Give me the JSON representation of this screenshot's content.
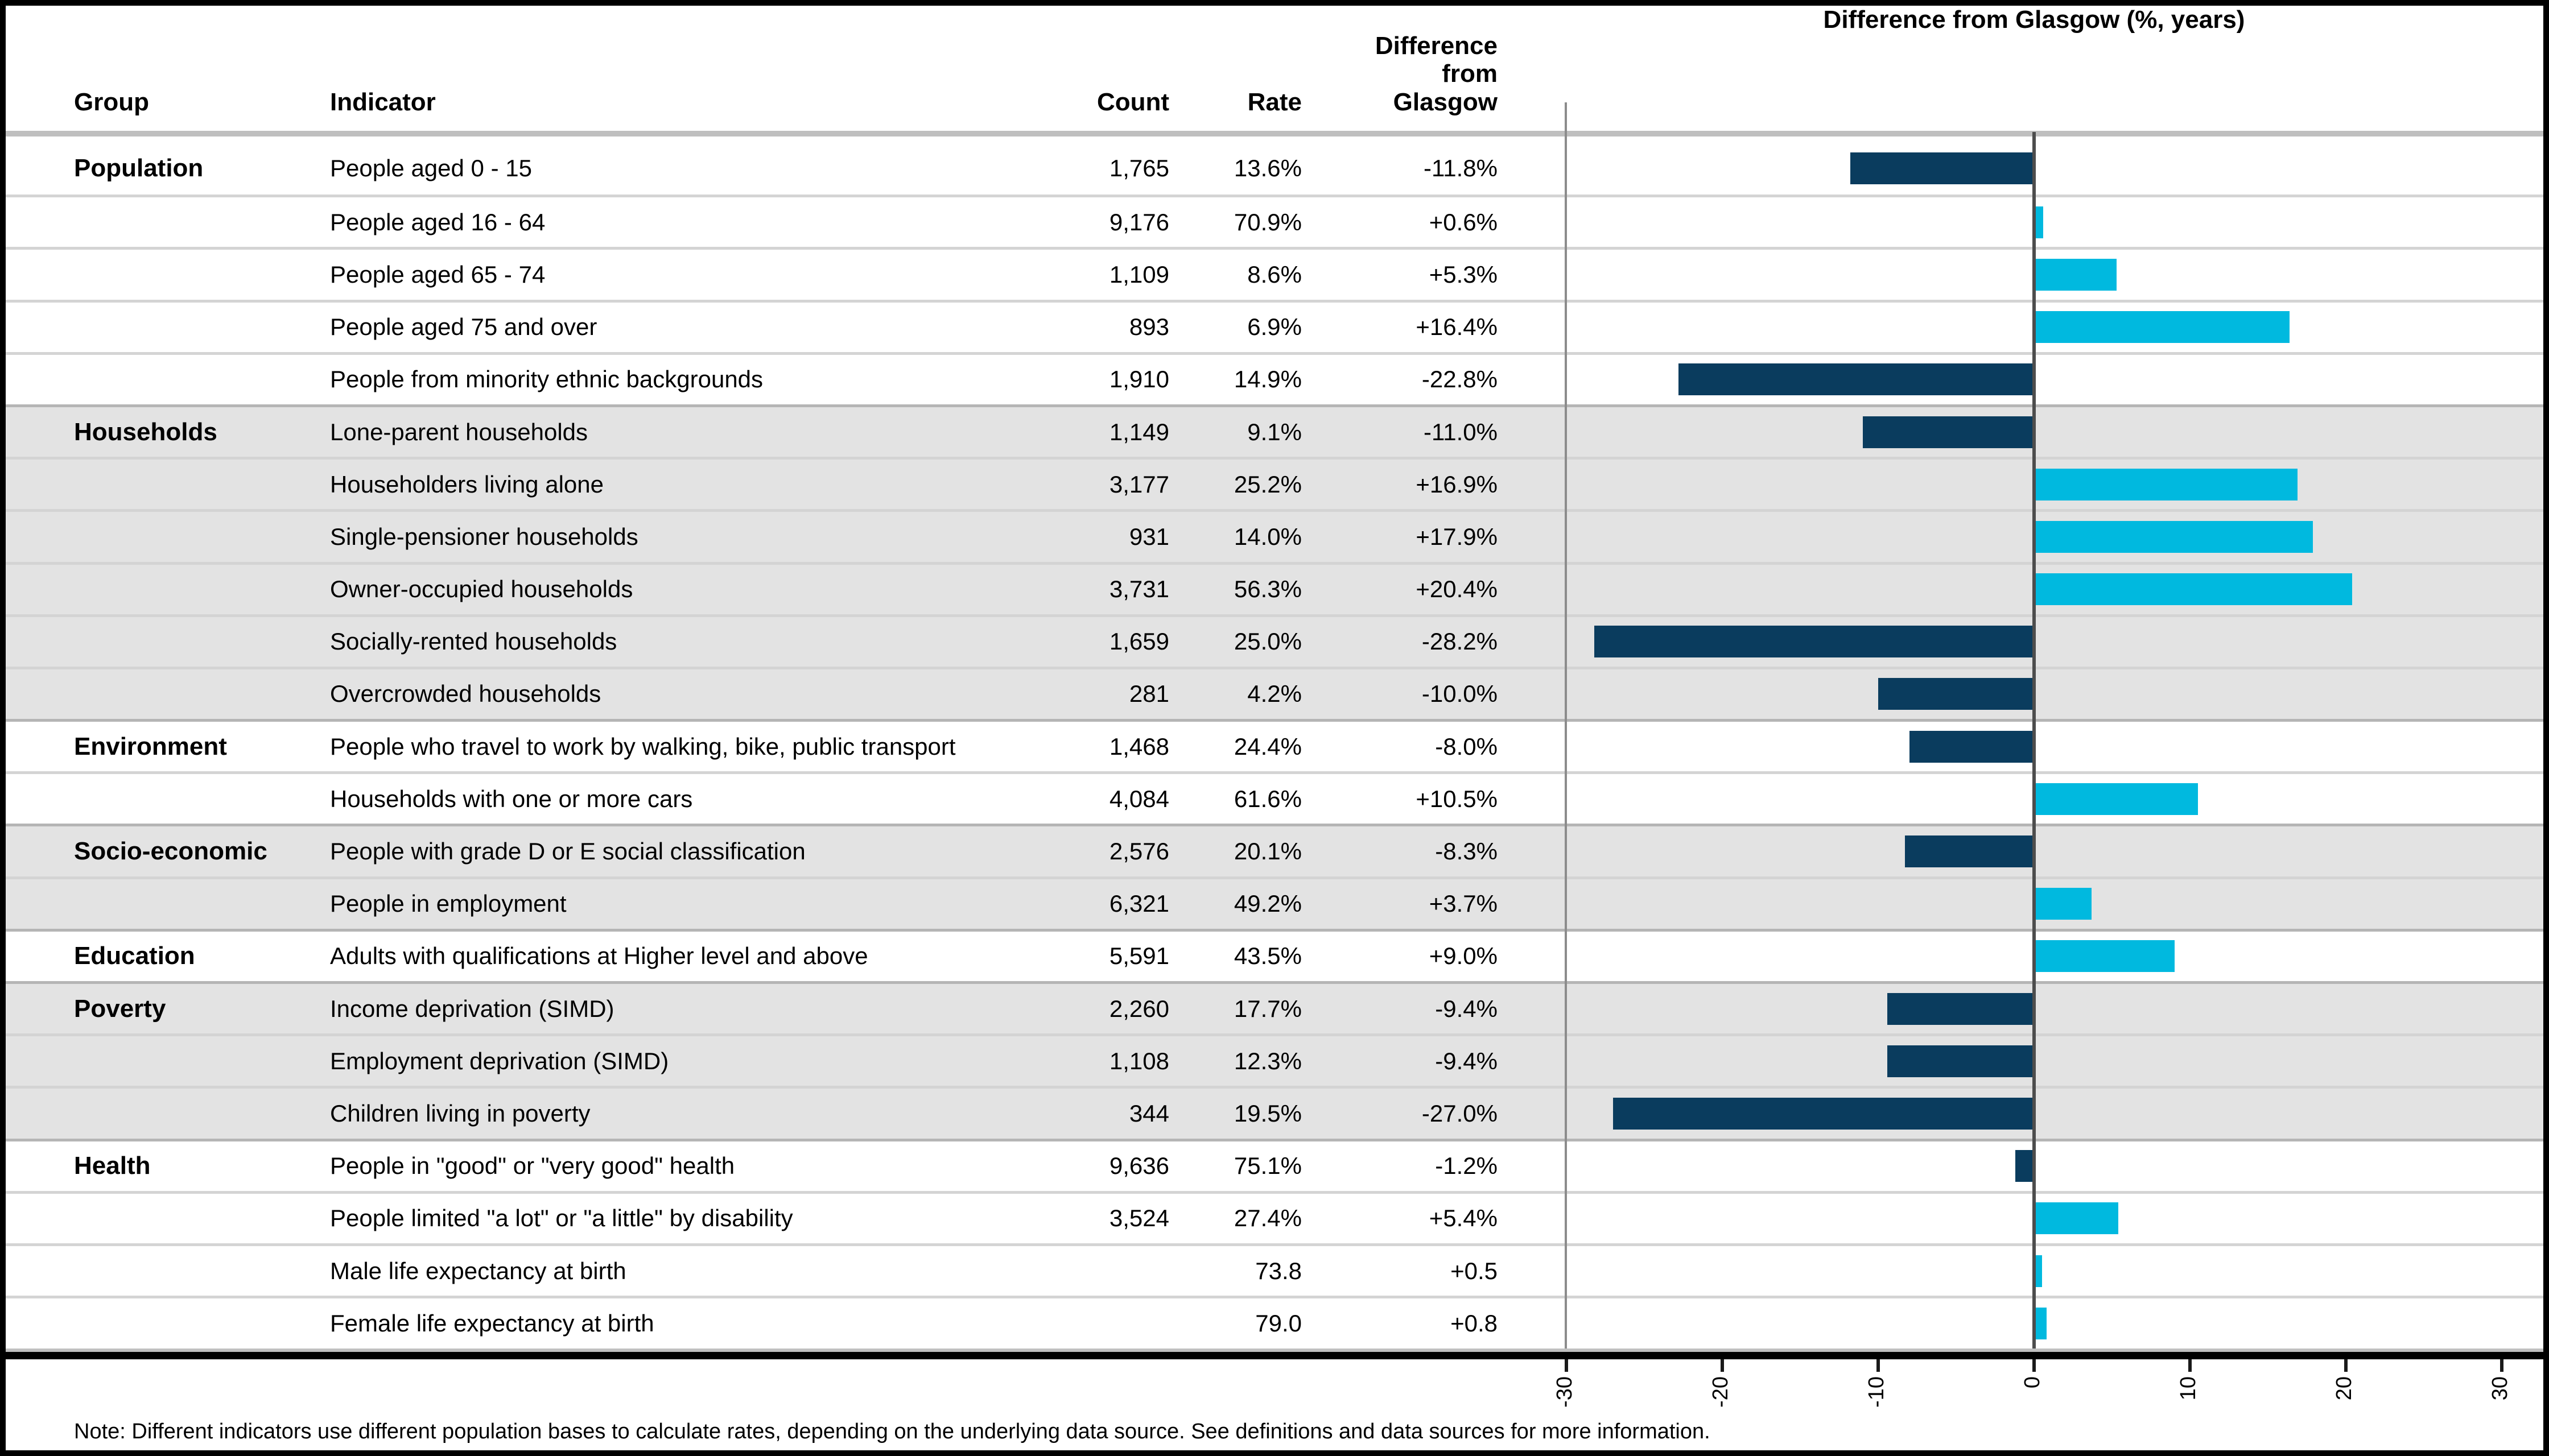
{
  "header": {
    "group": "Group",
    "indicator": "Indicator",
    "count": "Count",
    "rate": "Rate",
    "difference": "Difference from Glasgow",
    "chart_title": "Difference from Glasgow (%, years)"
  },
  "note": "Note: Different indicators use different population bases to calculate rates, depending on the underlying data source. See definitions and data sources for more information.",
  "colors": {
    "negative": "#0A3C5E",
    "positive": "#00B9DF",
    "band": "#E3E3E3",
    "zero_line": "#4D4D4D"
  },
  "axis": {
    "ticks": [
      -30,
      -20,
      -10,
      0,
      10,
      20,
      30
    ],
    "min": -30,
    "max": 30
  },
  "rows": [
    {
      "group": "Population",
      "indicator": "People aged 0 - 15",
      "count": "1,765",
      "rate": "13.6%",
      "diff": "-11.8%",
      "value": -11.8,
      "band": "white",
      "group_start": true
    },
    {
      "group": "",
      "indicator": "People aged 16 - 64",
      "count": "9,176",
      "rate": "70.9%",
      "diff": "+0.6%",
      "value": 0.6,
      "band": "white",
      "group_start": false
    },
    {
      "group": "",
      "indicator": "People aged 65 - 74",
      "count": "1,109",
      "rate": "8.6%",
      "diff": "+5.3%",
      "value": 5.3,
      "band": "white",
      "group_start": false
    },
    {
      "group": "",
      "indicator": "People aged 75 and over",
      "count": "893",
      "rate": "6.9%",
      "diff": "+16.4%",
      "value": 16.4,
      "band": "white",
      "group_start": false
    },
    {
      "group": "",
      "indicator": "People from minority ethnic backgrounds",
      "count": "1,910",
      "rate": "14.9%",
      "diff": "-22.8%",
      "value": -22.8,
      "band": "white",
      "group_start": false
    },
    {
      "group": "Households",
      "indicator": "Lone-parent households",
      "count": "1,149",
      "rate": "9.1%",
      "diff": "-11.0%",
      "value": -11.0,
      "band": "gray",
      "group_start": true
    },
    {
      "group": "",
      "indicator": "Householders living alone",
      "count": "3,177",
      "rate": "25.2%",
      "diff": "+16.9%",
      "value": 16.9,
      "band": "gray",
      "group_start": false
    },
    {
      "group": "",
      "indicator": "Single-pensioner households",
      "count": "931",
      "rate": "14.0%",
      "diff": "+17.9%",
      "value": 17.9,
      "band": "gray",
      "group_start": false
    },
    {
      "group": "",
      "indicator": "Owner-occupied households",
      "count": "3,731",
      "rate": "56.3%",
      "diff": "+20.4%",
      "value": 20.4,
      "band": "gray",
      "group_start": false
    },
    {
      "group": "",
      "indicator": "Socially-rented households",
      "count": "1,659",
      "rate": "25.0%",
      "diff": "-28.2%",
      "value": -28.2,
      "band": "gray",
      "group_start": false
    },
    {
      "group": "",
      "indicator": "Overcrowded households",
      "count": "281",
      "rate": "4.2%",
      "diff": "-10.0%",
      "value": -10.0,
      "band": "gray",
      "group_start": false
    },
    {
      "group": "Environment",
      "indicator": "People who travel to work by walking, bike, public transport",
      "count": "1,468",
      "rate": "24.4%",
      "diff": "-8.0%",
      "value": -8.0,
      "band": "white",
      "group_start": true
    },
    {
      "group": "",
      "indicator": "Households with one or more cars",
      "count": "4,084",
      "rate": "61.6%",
      "diff": "+10.5%",
      "value": 10.5,
      "band": "white",
      "group_start": false
    },
    {
      "group": "Socio-economic",
      "indicator": "People with grade D or E social classification",
      "count": "2,576",
      "rate": "20.1%",
      "diff": "-8.3%",
      "value": -8.3,
      "band": "gray",
      "group_start": true
    },
    {
      "group": "",
      "indicator": "People in employment",
      "count": "6,321",
      "rate": "49.2%",
      "diff": "+3.7%",
      "value": 3.7,
      "band": "gray",
      "group_start": false
    },
    {
      "group": "Education",
      "indicator": "Adults with qualifications at Higher level and above",
      "count": "5,591",
      "rate": "43.5%",
      "diff": "+9.0%",
      "value": 9.0,
      "band": "white",
      "group_start": true
    },
    {
      "group": "Poverty",
      "indicator": "Income deprivation (SIMD)",
      "count": "2,260",
      "rate": "17.7%",
      "diff": "-9.4%",
      "value": -9.4,
      "band": "gray",
      "group_start": true
    },
    {
      "group": "",
      "indicator": "Employment deprivation (SIMD)",
      "count": "1,108",
      "rate": "12.3%",
      "diff": "-9.4%",
      "value": -9.4,
      "band": "gray",
      "group_start": false
    },
    {
      "group": "",
      "indicator": "Children living in poverty",
      "count": "344",
      "rate": "19.5%",
      "diff": "-27.0%",
      "value": -27.0,
      "band": "gray",
      "group_start": false
    },
    {
      "group": "Health",
      "indicator": "People in \"good\" or \"very good\" health",
      "count": "9,636",
      "rate": "75.1%",
      "diff": "-1.2%",
      "value": -1.2,
      "band": "white",
      "group_start": true
    },
    {
      "group": "",
      "indicator": "People limited \"a lot\" or \"a little\" by disability",
      "count": "3,524",
      "rate": "27.4%",
      "diff": "+5.4%",
      "value": 5.4,
      "band": "white",
      "group_start": false
    },
    {
      "group": "",
      "indicator": "Male life expectancy at birth",
      "count": "",
      "rate": "73.8",
      "diff": "+0.5",
      "value": 0.5,
      "band": "white",
      "group_start": false
    },
    {
      "group": "",
      "indicator": "Female life expectancy at birth",
      "count": "",
      "rate": "79.0",
      "diff": "+0.8",
      "value": 0.8,
      "band": "white",
      "group_start": false
    }
  ],
  "chart_data": {
    "type": "bar",
    "orientation": "horizontal",
    "title": "Difference from Glasgow (%, years)",
    "categories": [
      "People aged 0 - 15",
      "People aged 16 - 64",
      "People aged 65 - 74",
      "People aged 75 and over",
      "People from minority ethnic backgrounds",
      "Lone-parent households",
      "Householders living alone",
      "Single-pensioner households",
      "Owner-occupied households",
      "Socially-rented households",
      "Overcrowded households",
      "People who travel to work by walking, bike, public transport",
      "Households with one or more cars",
      "People with grade D or E social classification",
      "People in employment",
      "Adults with qualifications at Higher level and above",
      "Income deprivation (SIMD)",
      "Employment deprivation (SIMD)",
      "Children living in poverty",
      "People in \"good\" or \"very good\" health",
      "People limited \"a lot\" or \"a little\" by disability",
      "Male life expectancy at birth",
      "Female life expectancy at birth"
    ],
    "values": [
      -11.8,
      0.6,
      5.3,
      16.4,
      -22.8,
      -11.0,
      16.9,
      17.9,
      20.4,
      -28.2,
      -10.0,
      -8.0,
      10.5,
      -8.3,
      3.7,
      9.0,
      -9.4,
      -9.4,
      -27.0,
      -1.2,
      5.4,
      0.5,
      0.8
    ],
    "xlim": [
      -30,
      30
    ],
    "xticks": [
      -30,
      -20,
      -10,
      0,
      10,
      20,
      30
    ],
    "grid": false,
    "legend": false,
    "negative_color": "#0A3C5E",
    "positive_color": "#00B9DF"
  }
}
